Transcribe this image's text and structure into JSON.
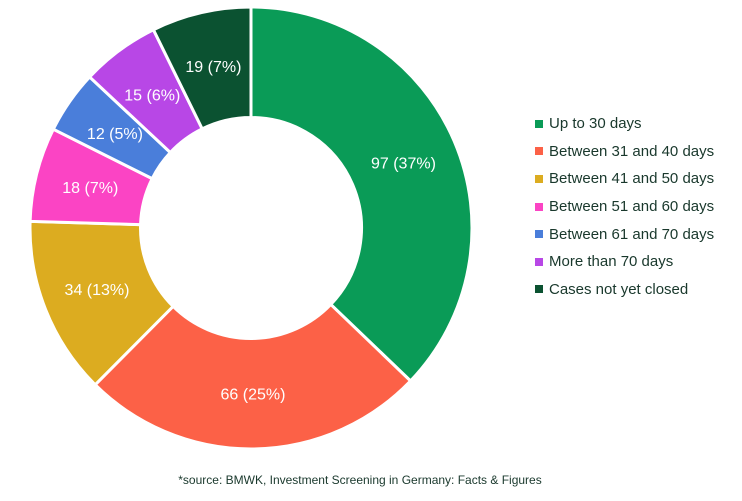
{
  "chart_data": {
    "type": "pie",
    "variant": "donut",
    "title": "",
    "slices": [
      {
        "label": "Up to 30 days",
        "value": 97,
        "pct": 37,
        "data_label": "97 (37%)",
        "color": "#0A9B57"
      },
      {
        "label": "Between 31 and 40 days",
        "value": 66,
        "pct": 25,
        "data_label": "66 (25%)",
        "color": "#FC6147"
      },
      {
        "label": "Between 41 and 50 days",
        "value": 34,
        "pct": 13,
        "data_label": "34 (13%)",
        "color": "#DCAC20"
      },
      {
        "label": "Between 51 and 60 days",
        "value": 18,
        "pct": 7,
        "data_label": "18 (7%)",
        "color": "#FB44C4"
      },
      {
        "label": "Between 61 and 70 days",
        "value": 12,
        "pct": 5,
        "data_label": "12 (5%)",
        "color": "#4A7EDA"
      },
      {
        "label": "More than 70 days",
        "value": 15,
        "pct": 6,
        "data_label": "15 (6%)",
        "color": "#B847E6"
      },
      {
        "label": "Cases not yet closed",
        "value": 19,
        "pct": 7,
        "data_label": "19 (7%)",
        "color": "#0B5231"
      }
    ],
    "total": 261,
    "start_angle_deg": 0,
    "direction": "clockwise",
    "inner_radius_ratio": 0.5,
    "slice_gap_color": "#FFFFFF",
    "slice_label_color": "#FFFFFF",
    "legend_position": "right"
  },
  "theme": {
    "text_color": "#19382C",
    "background": "#FFFFFF"
  },
  "footer": {
    "source_note": "*source: BMWK, Investment Screening in Germany: Facts & Figures"
  }
}
